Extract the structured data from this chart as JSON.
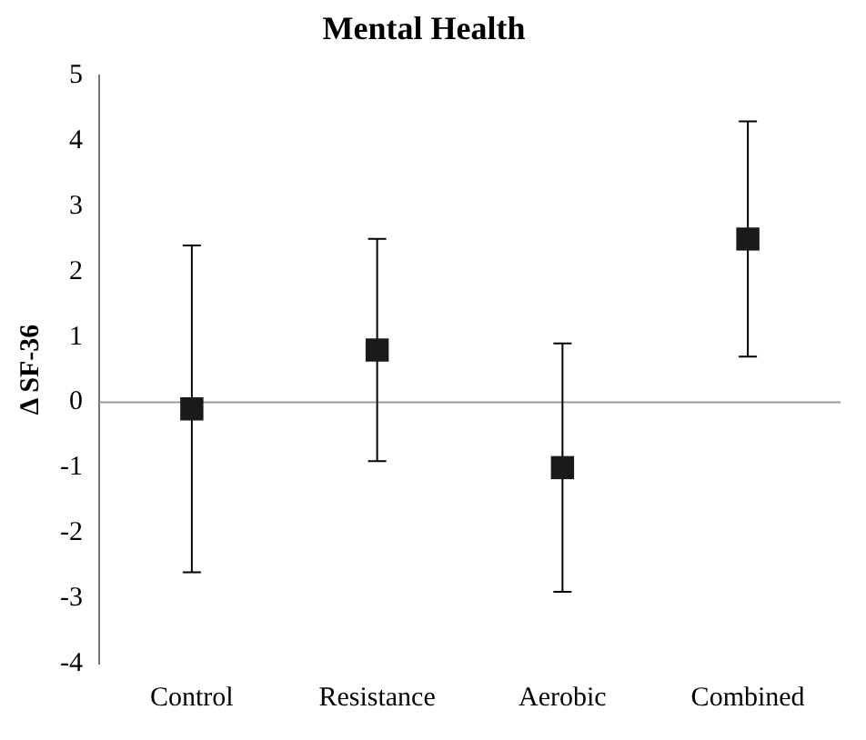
{
  "chart_data": {
    "type": "scatter",
    "title": "Mental Health",
    "ylabel": "Δ SF-36",
    "categories": [
      "Control",
      "Resistance",
      "Aerobic",
      "Combined"
    ],
    "values": [
      -0.1,
      0.8,
      -1.0,
      2.5
    ],
    "errors": [
      [
        -2.6,
        2.4
      ],
      [
        -0.9,
        2.5
      ],
      [
        -2.9,
        0.9
      ],
      [
        0.7,
        4.3
      ]
    ],
    "color": "#1a1a1a",
    "marker": "square",
    "ylim": [
      -4,
      5
    ],
    "yticks": [
      -4,
      -3,
      -2,
      -1,
      0,
      1,
      2,
      3,
      4,
      5
    ],
    "ref_lines": [
      {
        "axis": "y",
        "value": 0,
        "color": "#999999"
      }
    ],
    "grid": false,
    "legend": false
  }
}
